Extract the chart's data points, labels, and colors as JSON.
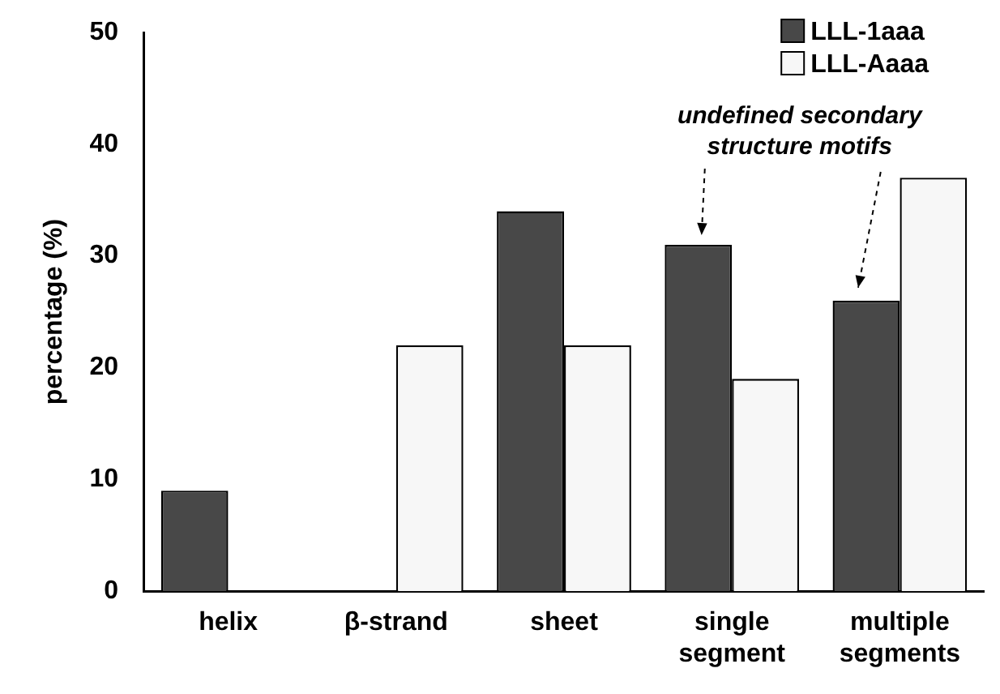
{
  "chart_data": {
    "type": "bar",
    "ylabel": "percentage (%)",
    "categories": [
      "helix",
      "β-strand",
      "sheet",
      "single segment",
      "multiple segments"
    ],
    "series": [
      {
        "name": "LLL-1aaa",
        "color": "#484848",
        "values": [
          9,
          null,
          34,
          31,
          26
        ]
      },
      {
        "name": "LLL-Aaaa",
        "color": "#f7f7f7",
        "values": [
          null,
          22,
          22,
          19,
          37
        ]
      }
    ],
    "ylim": [
      0,
      50
    ],
    "yticks": [
      0,
      10,
      20,
      30,
      40,
      50
    ],
    "grid": false,
    "legend": "top right",
    "annotations": [
      "undefined secondary structure motifs"
    ]
  }
}
